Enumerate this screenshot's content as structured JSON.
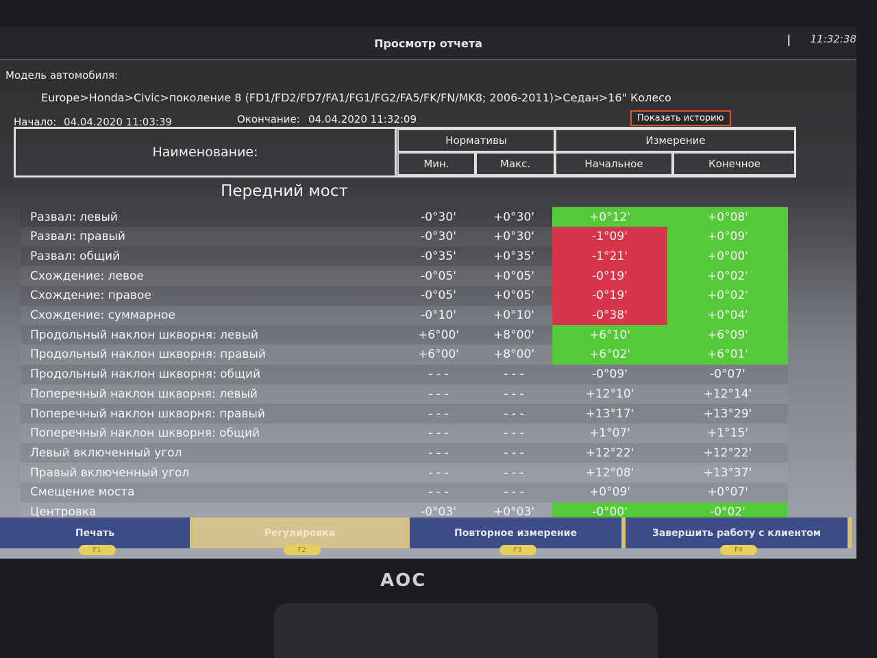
{
  "window": {
    "title": "Просмотр отчета",
    "clock": "11:32:38"
  },
  "vehicle": {
    "label": "Модель автомобиля:",
    "path": "Europe>Honda>Civic>поколение 8 (FD1/FD2/FD7/FA1/FG1/FG2/FA5/FK/FN/MK8; 2006-2011)>Седан>16\" Колесо"
  },
  "session": {
    "start_label": "Начало:",
    "start": "04.04.2020 11:03:39",
    "end_label": "Окончание:",
    "end": "04.04.2020 11:32:09",
    "history_button": "Показать историю"
  },
  "table_header": {
    "name": "Наименование:",
    "norms": "Нормативы",
    "min": "Мин.",
    "max": "Макс.",
    "measure": "Измерение",
    "initial": "Начальное",
    "final": "Конечное"
  },
  "section": "Передний мост",
  "status_colors": {
    "ok": "#55c93a",
    "bad": "#d9354a"
  },
  "rows": [
    {
      "name": "Развал: левый",
      "min": "-0°30'",
      "max": "+0°30'",
      "initial": "+0°12'",
      "final": "+0°08'",
      "initial_status": "ok",
      "final_status": "ok"
    },
    {
      "name": "Развал: правый",
      "min": "-0°30'",
      "max": "+0°30'",
      "initial": "-1°09'",
      "final": "+0°09'",
      "initial_status": "bad",
      "final_status": "ok"
    },
    {
      "name": "Развал: общий",
      "min": "-0°35'",
      "max": "+0°35'",
      "initial": "-1°21'",
      "final": "+0°00'",
      "initial_status": "bad",
      "final_status": "ok"
    },
    {
      "name": "Схождение: левое",
      "min": "-0°05'",
      "max": "+0°05'",
      "initial": "-0°19'",
      "final": "+0°02'",
      "initial_status": "bad",
      "final_status": "ok"
    },
    {
      "name": "Схождение: правое",
      "min": "-0°05'",
      "max": "+0°05'",
      "initial": "-0°19'",
      "final": "+0°02'",
      "initial_status": "bad",
      "final_status": "ok"
    },
    {
      "name": "Схождение: суммарное",
      "min": "-0°10'",
      "max": "+0°10'",
      "initial": "-0°38'",
      "final": "+0°04'",
      "initial_status": "bad",
      "final_status": "ok"
    },
    {
      "name": "Продольный наклон шкворня: левый",
      "min": "+6°00'",
      "max": "+8°00'",
      "initial": "+6°10'",
      "final": "+6°09'",
      "initial_status": "ok",
      "final_status": "ok"
    },
    {
      "name": "Продольный наклон шкворня: правый",
      "min": "+6°00'",
      "max": "+8°00'",
      "initial": "+6°02'",
      "final": "+6°01'",
      "initial_status": "ok",
      "final_status": "ok"
    },
    {
      "name": "Продольный наклон шкворня: общий",
      "min": "- - -",
      "max": "- - -",
      "initial": "-0°09'",
      "final": "-0°07'",
      "initial_status": "",
      "final_status": ""
    },
    {
      "name": "Поперечный наклон шкворня: левый",
      "min": "- - -",
      "max": "- - -",
      "initial": "+12°10'",
      "final": "+12°14'",
      "initial_status": "",
      "final_status": ""
    },
    {
      "name": "Поперечный наклон шкворня: правый",
      "min": "- - -",
      "max": "- - -",
      "initial": "+13°17'",
      "final": "+13°29'",
      "initial_status": "",
      "final_status": ""
    },
    {
      "name": "Поперечный наклон шкворня: общий",
      "min": "- - -",
      "max": "- - -",
      "initial": "+1°07'",
      "final": "+1°15'",
      "initial_status": "",
      "final_status": ""
    },
    {
      "name": "Левый включенный угол",
      "min": "- - -",
      "max": "- - -",
      "initial": "+12°22'",
      "final": "+12°22'",
      "initial_status": "",
      "final_status": ""
    },
    {
      "name": "Правый включенный угол",
      "min": "- - -",
      "max": "- - -",
      "initial": "+12°08'",
      "final": "+13°37'",
      "initial_status": "",
      "final_status": ""
    },
    {
      "name": "Смещение моста",
      "min": "- - -",
      "max": "- - -",
      "initial": "+0°09'",
      "final": "+0°07'",
      "initial_status": "",
      "final_status": ""
    },
    {
      "name": "Центровка",
      "min": "-0°03'",
      "max": "+0°03'",
      "initial": "-0°00'",
      "final": "-0°02'",
      "initial_status": "ok",
      "final_status": "ok"
    }
  ],
  "footer": [
    {
      "label": "Печать",
      "key": "F1"
    },
    {
      "label": "Регулировка",
      "key": "F2",
      "disabled": true
    },
    {
      "label": "Повторное измерение",
      "key": "F3"
    },
    {
      "label": "Завершить работу с клиентом",
      "key": "F4"
    }
  ],
  "monitor": {
    "brand": "AOC"
  }
}
